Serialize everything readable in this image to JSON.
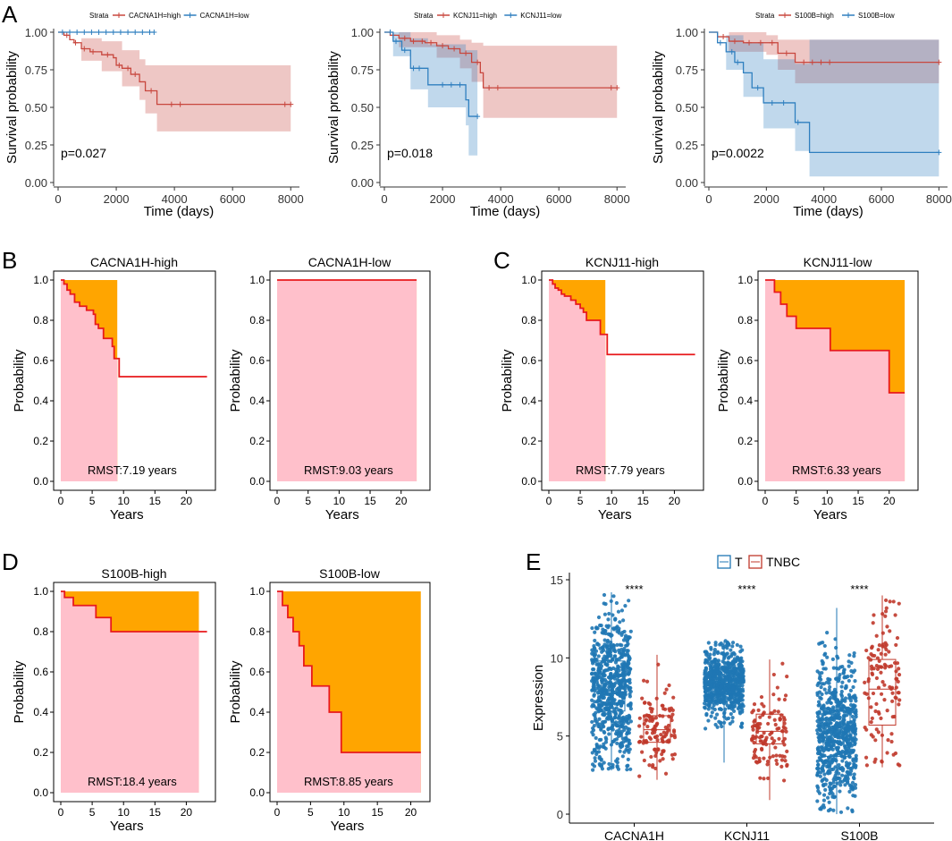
{
  "figure": {
    "panel_letters": [
      "A",
      "B",
      "C",
      "D",
      "E"
    ]
  },
  "chart_data": [
    {
      "id": "A1",
      "type": "line",
      "subtype": "kaplan-meier",
      "ylabel": "Survival probability",
      "xlabel": "Time (days)",
      "xlim": [
        0,
        8300
      ],
      "ylim": [
        0,
        1
      ],
      "xticks": [
        0,
        2000,
        4000,
        6000,
        8000
      ],
      "yticks": [
        "0.00",
        "0.25",
        "0.50",
        "0.75",
        "1.00"
      ],
      "legend_title": "Strata",
      "pvalue": "p=0.027",
      "series": [
        {
          "name": "CACNA1H=high",
          "color": "#c8473e",
          "steps": [
            [
              0,
              1.0
            ],
            [
              200,
              0.98
            ],
            [
              400,
              0.95
            ],
            [
              550,
              0.93
            ],
            [
              800,
              0.89
            ],
            [
              1100,
              0.87
            ],
            [
              1500,
              0.85
            ],
            [
              1900,
              0.83
            ],
            [
              2000,
              0.78
            ],
            [
              2200,
              0.76
            ],
            [
              2500,
              0.72
            ],
            [
              2800,
              0.67
            ],
            [
              3000,
              0.61
            ],
            [
              3400,
              0.52
            ],
            [
              8000,
              0.52
            ]
          ],
          "ci": [
            [
              0,
              1.0,
              1.0
            ],
            [
              800,
              0.81,
              0.96
            ],
            [
              1500,
              0.74,
              0.94
            ],
            [
              2200,
              0.64,
              0.88
            ],
            [
              2800,
              0.55,
              0.82
            ],
            [
              3000,
              0.46,
              0.78
            ],
            [
              3400,
              0.34,
              0.78
            ],
            [
              8000,
              0.34,
              0.78
            ]
          ],
          "censors": [
            300,
            600,
            900,
            1200,
            1700,
            2100,
            2400,
            2650,
            3200,
            3900,
            4200,
            7800,
            8000
          ]
        },
        {
          "name": "CACNA1H=low",
          "color": "#2f7fbf",
          "steps": [
            [
              0,
              1.0
            ],
            [
              3300,
              1.0
            ]
          ],
          "ci": [],
          "censors": [
            150,
            400,
            650,
            900,
            1150,
            1400,
            1650,
            1900,
            2150,
            2400,
            2650,
            2900,
            3150,
            3300
          ]
        }
      ]
    },
    {
      "id": "A2",
      "type": "line",
      "subtype": "kaplan-meier",
      "ylabel": "Survival probability",
      "xlabel": "Time (days)",
      "xlim": [
        0,
        8300
      ],
      "ylim": [
        0,
        1
      ],
      "xticks": [
        0,
        2000,
        4000,
        6000,
        8000
      ],
      "yticks": [
        "0.00",
        "0.25",
        "0.50",
        "0.75",
        "1.00"
      ],
      "legend_title": "Strata",
      "pvalue": "p=0.018",
      "series": [
        {
          "name": "KCNJ11=high",
          "color": "#c8473e",
          "steps": [
            [
              0,
              1.0
            ],
            [
              200,
              0.98
            ],
            [
              500,
              0.96
            ],
            [
              900,
              0.94
            ],
            [
              1400,
              0.93
            ],
            [
              1800,
              0.91
            ],
            [
              2200,
              0.89
            ],
            [
              2600,
              0.86
            ],
            [
              3000,
              0.8
            ],
            [
              3300,
              0.73
            ],
            [
              3400,
              0.63
            ],
            [
              8000,
              0.63
            ]
          ],
          "ci": [
            [
              0,
              1.0,
              1.0
            ],
            [
              500,
              0.9,
              1.0
            ],
            [
              1800,
              0.83,
              0.98
            ],
            [
              2600,
              0.76,
              0.95
            ],
            [
              3000,
              0.67,
              0.93
            ],
            [
              3400,
              0.43,
              0.91
            ],
            [
              8000,
              0.43,
              0.91
            ]
          ],
          "censors": [
            300,
            700,
            1000,
            1300,
            1600,
            2000,
            2400,
            2800,
            3200,
            3600,
            3900,
            7800,
            8000
          ]
        },
        {
          "name": "KCNJ11=low",
          "color": "#2f7fbf",
          "steps": [
            [
              0,
              1.0
            ],
            [
              300,
              0.94
            ],
            [
              600,
              0.88
            ],
            [
              900,
              0.76
            ],
            [
              1500,
              0.65
            ],
            [
              2800,
              0.55
            ],
            [
              2900,
              0.44
            ],
            [
              3200,
              0.44
            ]
          ],
          "ci": [
            [
              0,
              1.0,
              1.0
            ],
            [
              300,
              0.84,
              1.0
            ],
            [
              900,
              0.62,
              0.96
            ],
            [
              1500,
              0.5,
              0.92
            ],
            [
              2800,
              0.38,
              0.88
            ],
            [
              2900,
              0.18,
              0.88
            ],
            [
              3200,
              0.18,
              0.88
            ]
          ],
          "censors": [
            200,
            400,
            700,
            1000,
            1200,
            2000,
            2300,
            2600,
            3200
          ]
        }
      ]
    },
    {
      "id": "A3",
      "type": "line",
      "subtype": "kaplan-meier",
      "ylabel": "Survival probability",
      "xlabel": "Time (days)",
      "xlim": [
        0,
        8300
      ],
      "ylim": [
        0,
        1
      ],
      "xticks": [
        0,
        2000,
        4000,
        6000,
        8000
      ],
      "yticks": [
        "0.00",
        "0.25",
        "0.50",
        "0.75",
        "1.00"
      ],
      "legend_title": "Strata",
      "pvalue": "p=0.0022",
      "series": [
        {
          "name": "S100B=high",
          "color": "#c8473e",
          "steps": [
            [
              0,
              1.0
            ],
            [
              300,
              0.97
            ],
            [
              700,
              0.94
            ],
            [
              1200,
              0.93
            ],
            [
              2000,
              0.93
            ],
            [
              2400,
              0.86
            ],
            [
              3000,
              0.8
            ],
            [
              8000,
              0.8
            ]
          ],
          "ci": [
            [
              0,
              1.0,
              1.0
            ],
            [
              700,
              0.87,
              1.0
            ],
            [
              2000,
              0.85,
              0.98
            ],
            [
              2400,
              0.75,
              0.95
            ],
            [
              3000,
              0.66,
              0.95
            ],
            [
              8000,
              0.66,
              0.95
            ]
          ],
          "censors": [
            500,
            900,
            1400,
            1800,
            2200,
            2700,
            3300,
            3600,
            3900,
            4200,
            8000
          ]
        },
        {
          "name": "S100B=low",
          "color": "#2f7fbf",
          "steps": [
            [
              0,
              1.0
            ],
            [
              300,
              0.93
            ],
            [
              600,
              0.87
            ],
            [
              900,
              0.8
            ],
            [
              1200,
              0.73
            ],
            [
              1500,
              0.63
            ],
            [
              1900,
              0.53
            ],
            [
              3000,
              0.4
            ],
            [
              3500,
              0.2
            ],
            [
              8000,
              0.2
            ]
          ],
          "ci": [
            [
              0,
              1.0,
              1.0
            ],
            [
              600,
              0.75,
              0.98
            ],
            [
              1200,
              0.57,
              0.93
            ],
            [
              1900,
              0.36,
              0.82
            ],
            [
              3000,
              0.21,
              0.79
            ],
            [
              3500,
              0.04,
              0.95
            ],
            [
              8000,
              0.04,
              0.95
            ]
          ],
          "censors": [
            400,
            800,
            1000,
            1700,
            2200,
            2600,
            3100,
            8000
          ]
        }
      ]
    },
    {
      "id": "B1",
      "type": "area",
      "subtype": "rmst",
      "title": "CACNA1H-high",
      "xlabel": "Years",
      "ylabel": "Probability",
      "xlim": [
        0,
        23.5
      ],
      "ylim": [
        0,
        1
      ],
      "tau": 9.0,
      "xticks": [
        0,
        5,
        10,
        15,
        20
      ],
      "yticks": [
        "0.0",
        "0.2",
        "0.4",
        "0.6",
        "0.8",
        "1.0"
      ],
      "rmst_label": "RMST:7.19 years",
      "curve": [
        [
          0,
          1.0
        ],
        [
          0.5,
          0.98
        ],
        [
          1.0,
          0.95
        ],
        [
          1.5,
          0.93
        ],
        [
          2.2,
          0.89
        ],
        [
          3.0,
          0.87
        ],
        [
          4.1,
          0.85
        ],
        [
          5.2,
          0.83
        ],
        [
          5.5,
          0.78
        ],
        [
          6.0,
          0.76
        ],
        [
          6.8,
          0.71
        ],
        [
          7.7,
          0.71
        ],
        [
          8.2,
          0.67
        ],
        [
          8.5,
          0.61
        ],
        [
          9.3,
          0.52
        ],
        [
          23.3,
          0.52
        ]
      ]
    },
    {
      "id": "B2",
      "type": "area",
      "subtype": "rmst",
      "title": "CACNA1H-low",
      "xlabel": "Years",
      "ylabel": "Probability",
      "xlim": [
        0,
        23.5
      ],
      "ylim": [
        0,
        1
      ],
      "tau": 22.5,
      "xticks": [
        0,
        5,
        10,
        15,
        20
      ],
      "yticks": [
        "0.0",
        "0.2",
        "0.4",
        "0.6",
        "0.8",
        "1.0"
      ],
      "rmst_label": "RMST:9.03 years",
      "curve": [
        [
          0,
          1.0
        ],
        [
          22.5,
          1.0
        ]
      ]
    },
    {
      "id": "C1",
      "type": "area",
      "subtype": "rmst",
      "title": "KCNJ11-high",
      "xlabel": "Years",
      "ylabel": "Probability",
      "xlim": [
        0,
        23.5
      ],
      "ylim": [
        0,
        1
      ],
      "tau": 9.0,
      "xticks": [
        0,
        5,
        10,
        15,
        20
      ],
      "yticks": [
        "0.0",
        "0.2",
        "0.4",
        "0.6",
        "0.8",
        "1.0"
      ],
      "rmst_label": "RMST:7.79 years",
      "curve": [
        [
          0,
          1.0
        ],
        [
          0.6,
          0.98
        ],
        [
          1.0,
          0.96
        ],
        [
          1.5,
          0.95
        ],
        [
          2.0,
          0.93
        ],
        [
          2.5,
          0.92
        ],
        [
          3.5,
          0.9
        ],
        [
          4.3,
          0.88
        ],
        [
          5.0,
          0.86
        ],
        [
          5.5,
          0.84
        ],
        [
          6.0,
          0.8
        ],
        [
          7.3,
          0.8
        ],
        [
          8.2,
          0.73
        ],
        [
          9.0,
          0.73
        ],
        [
          9.3,
          0.63
        ],
        [
          23.3,
          0.63
        ]
      ]
    },
    {
      "id": "C2",
      "type": "area",
      "subtype": "rmst",
      "title": "KCNJ11-low",
      "xlabel": "Years",
      "ylabel": "Probability",
      "xlim": [
        0,
        23.5
      ],
      "ylim": [
        0,
        1
      ],
      "tau": 22.5,
      "xticks": [
        0,
        5,
        10,
        15,
        20
      ],
      "yticks": [
        "0.0",
        "0.2",
        "0.4",
        "0.6",
        "0.8",
        "1.0"
      ],
      "rmst_label": "RMST:6.33 years",
      "curve": [
        [
          0,
          1.0
        ],
        [
          1.5,
          0.94
        ],
        [
          2.5,
          0.88
        ],
        [
          3.5,
          0.82
        ],
        [
          5.0,
          0.76
        ],
        [
          8.0,
          0.76
        ],
        [
          10.5,
          0.65
        ],
        [
          19.5,
          0.65
        ],
        [
          20.0,
          0.44
        ],
        [
          22.5,
          0.44
        ]
      ]
    },
    {
      "id": "D1",
      "type": "area",
      "subtype": "rmst",
      "title": "S100B-high",
      "xlabel": "Years",
      "ylabel": "Probability",
      "xlim": [
        0,
        23.5
      ],
      "ylim": [
        0,
        1
      ],
      "tau": 22.0,
      "xticks": [
        0,
        5,
        10,
        15,
        20
      ],
      "yticks": [
        "0.0",
        "0.2",
        "0.4",
        "0.6",
        "0.8",
        "1.0"
      ],
      "rmst_label": "RMST:18.4 years",
      "curve": [
        [
          0,
          1.0
        ],
        [
          0.6,
          0.97
        ],
        [
          2.0,
          0.93
        ],
        [
          5.0,
          0.93
        ],
        [
          5.6,
          0.87
        ],
        [
          8.0,
          0.8
        ],
        [
          23.3,
          0.8
        ]
      ]
    },
    {
      "id": "D2",
      "type": "area",
      "subtype": "rmst",
      "title": "S100B-low",
      "xlabel": "Years",
      "ylabel": "Probability",
      "xlim": [
        0,
        21.8
      ],
      "ylim": [
        0,
        1
      ],
      "tau": 21.5,
      "xticks": [
        0,
        5,
        10,
        15,
        20
      ],
      "yticks": [
        "0.0",
        "0.2",
        "0.4",
        "0.6",
        "0.8",
        "1.0"
      ],
      "rmst_label": "RMST:8.85 years",
      "curve": [
        [
          0,
          1.0
        ],
        [
          0.8,
          0.93
        ],
        [
          1.6,
          0.87
        ],
        [
          2.4,
          0.8
        ],
        [
          3.3,
          0.73
        ],
        [
          4.0,
          0.63
        ],
        [
          5.2,
          0.53
        ],
        [
          7.8,
          0.4
        ],
        [
          9.6,
          0.2
        ],
        [
          21.5,
          0.2
        ]
      ]
    },
    {
      "id": "E",
      "type": "box",
      "ylabel": "Expression",
      "ylim": [
        -0.5,
        15
      ],
      "yticks": [
        0,
        5,
        10,
        15
      ],
      "legend": [
        {
          "name": "T",
          "color": "#1f77b4"
        },
        {
          "name": "TNBC",
          "color": "#c0392b"
        }
      ],
      "categories": [
        "CACNA1H",
        "KCNJ11",
        "S100B"
      ],
      "significance": [
        "****",
        "****",
        "****"
      ],
      "groups": [
        {
          "category": "CACNA1H",
          "series": "T",
          "n": 700,
          "min": 2.8,
          "q1": 6.6,
          "median": 7.7,
          "q3": 9.8,
          "max": 14.2
        },
        {
          "category": "CACNA1H",
          "series": "TNBC",
          "n": 120,
          "min": 2.2,
          "q1": 4.6,
          "median": 5.4,
          "q3": 6.3,
          "max": 10.2
        },
        {
          "category": "KCNJ11",
          "series": "T",
          "n": 700,
          "min": 3.3,
          "q1": 7.7,
          "median": 8.5,
          "q3": 9.2,
          "max": 11.1
        },
        {
          "category": "KCNJ11",
          "series": "TNBC",
          "n": 120,
          "min": 0.9,
          "q1": 4.5,
          "median": 5.3,
          "q3": 6.4,
          "max": 9.9
        },
        {
          "category": "S100B",
          "series": "T",
          "n": 700,
          "min": 0.0,
          "q1": 3.7,
          "median": 5.2,
          "q3": 6.8,
          "max": 13.2
        },
        {
          "category": "S100B",
          "series": "TNBC",
          "n": 120,
          "min": 3.0,
          "q1": 5.7,
          "median": 8.0,
          "q3": 9.9,
          "max": 14.0
        }
      ]
    }
  ]
}
